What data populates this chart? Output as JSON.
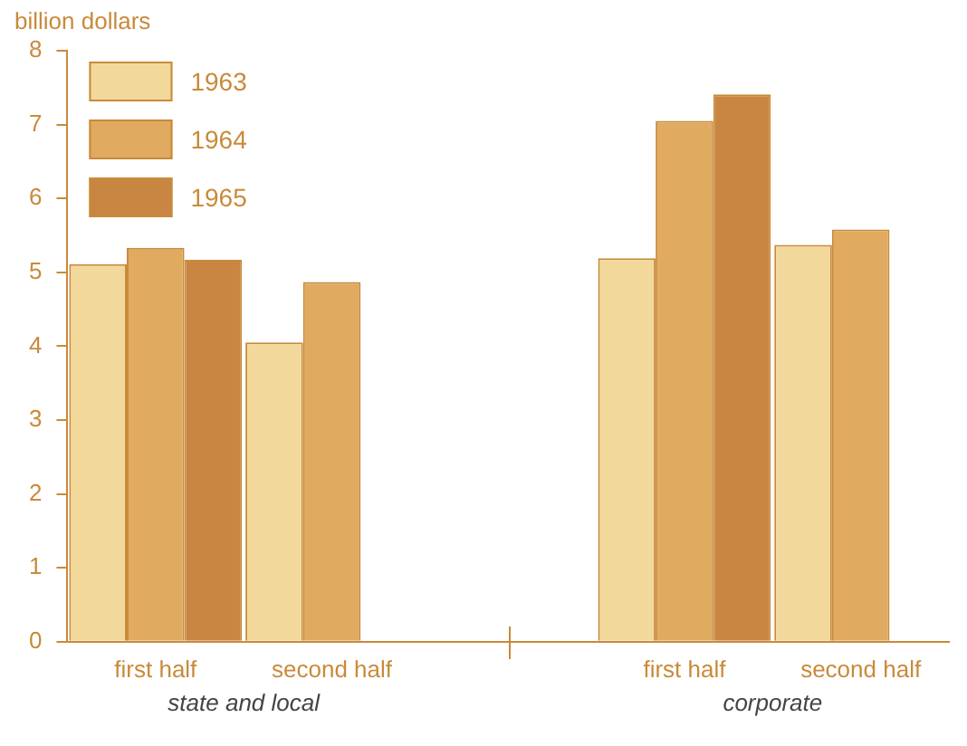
{
  "chart_data": {
    "type": "bar",
    "ylabel": "billion dollars",
    "categories": [
      "first half",
      "second half",
      null,
      "first half",
      "second half"
    ],
    "series": [
      {
        "name": "1963",
        "color": "#f3d89c",
        "values": [
          5.11,
          4.05,
          null,
          5.19,
          5.37
        ]
      },
      {
        "name": "1964",
        "color": "#e0aa60",
        "values": [
          5.33,
          4.87,
          null,
          7.05,
          5.58
        ]
      },
      {
        "name": "1965",
        "color": "#c98642",
        "values": [
          5.17,
          null,
          null,
          7.41,
          null
        ]
      }
    ],
    "ylim": [
      0,
      8
    ],
    "yticks": [
      0,
      1,
      2,
      3,
      4,
      5,
      6,
      7,
      8
    ],
    "grid": false,
    "legend": "top left",
    "annotations": [
      "state and local",
      "corporate"
    ]
  }
}
